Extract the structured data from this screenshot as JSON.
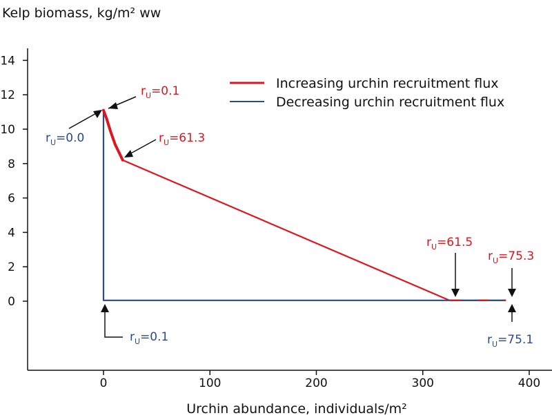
{
  "chart_data": {
    "type": "line",
    "xlabel": "Urchin abundance, individuals/m²",
    "ylabel": "Kelp biomass, kg/m² ww",
    "xlim": [
      -70,
      410
    ],
    "ylim": [
      -8,
      15
    ],
    "x_ticks": [
      0,
      100,
      200,
      300,
      400
    ],
    "y_ticks": [
      0,
      2,
      4,
      6,
      8,
      10,
      12,
      14
    ],
    "grid": false,
    "legend_position": "top-right",
    "series": [
      {
        "name": "Increasing urchin recruitment flux",
        "color": "#e0141e",
        "x": [
          0,
          3,
          7,
          11,
          15,
          18,
          325,
          335,
          352,
          362,
          378
        ],
        "y": [
          11.1,
          10.6,
          9.8,
          9.1,
          8.6,
          8.2,
          0.05,
          0.05,
          0.05,
          0.05,
          0.05
        ]
      },
      {
        "name": "Decreasing urchin recruitment flux",
        "color": "#2b4a8b",
        "x": [
          378,
          2,
          0,
          0
        ],
        "y": [
          0.05,
          0.05,
          0.05,
          11.1
        ]
      }
    ],
    "annotations": [
      {
        "id": "inc-start",
        "prefix": "r",
        "sub": "U",
        "value": "=0.1",
        "color": "#e0141e",
        "x": 0,
        "y": 11.1
      },
      {
        "id": "dec-top",
        "prefix": "r",
        "sub": "U",
        "value": "=0.0",
        "color": "#2b4a8b",
        "x": 0,
        "y": 11.1
      },
      {
        "id": "inc-kink",
        "prefix": "r",
        "sub": "U",
        "value": "=61.3",
        "color": "#e0141e",
        "x": 18,
        "y": 8.2
      },
      {
        "id": "inc-zero",
        "prefix": "r",
        "sub": "U",
        "value": "=61.5",
        "color": "#e0141e",
        "x": 325,
        "y": 0.05
      },
      {
        "id": "inc-end",
        "prefix": "r",
        "sub": "U",
        "value": "=75.3",
        "color": "#e0141e",
        "x": 378,
        "y": 0.05
      },
      {
        "id": "dec-bottom",
        "prefix": "r",
        "sub": "U",
        "value": "=0.1",
        "color": "#2b4a8b",
        "x": 0,
        "y": 0.05
      },
      {
        "id": "dec-end",
        "prefix": "r",
        "sub": "U",
        "value": "=75.1",
        "color": "#2b4a8b",
        "x": 378,
        "y": 0.05
      }
    ]
  }
}
